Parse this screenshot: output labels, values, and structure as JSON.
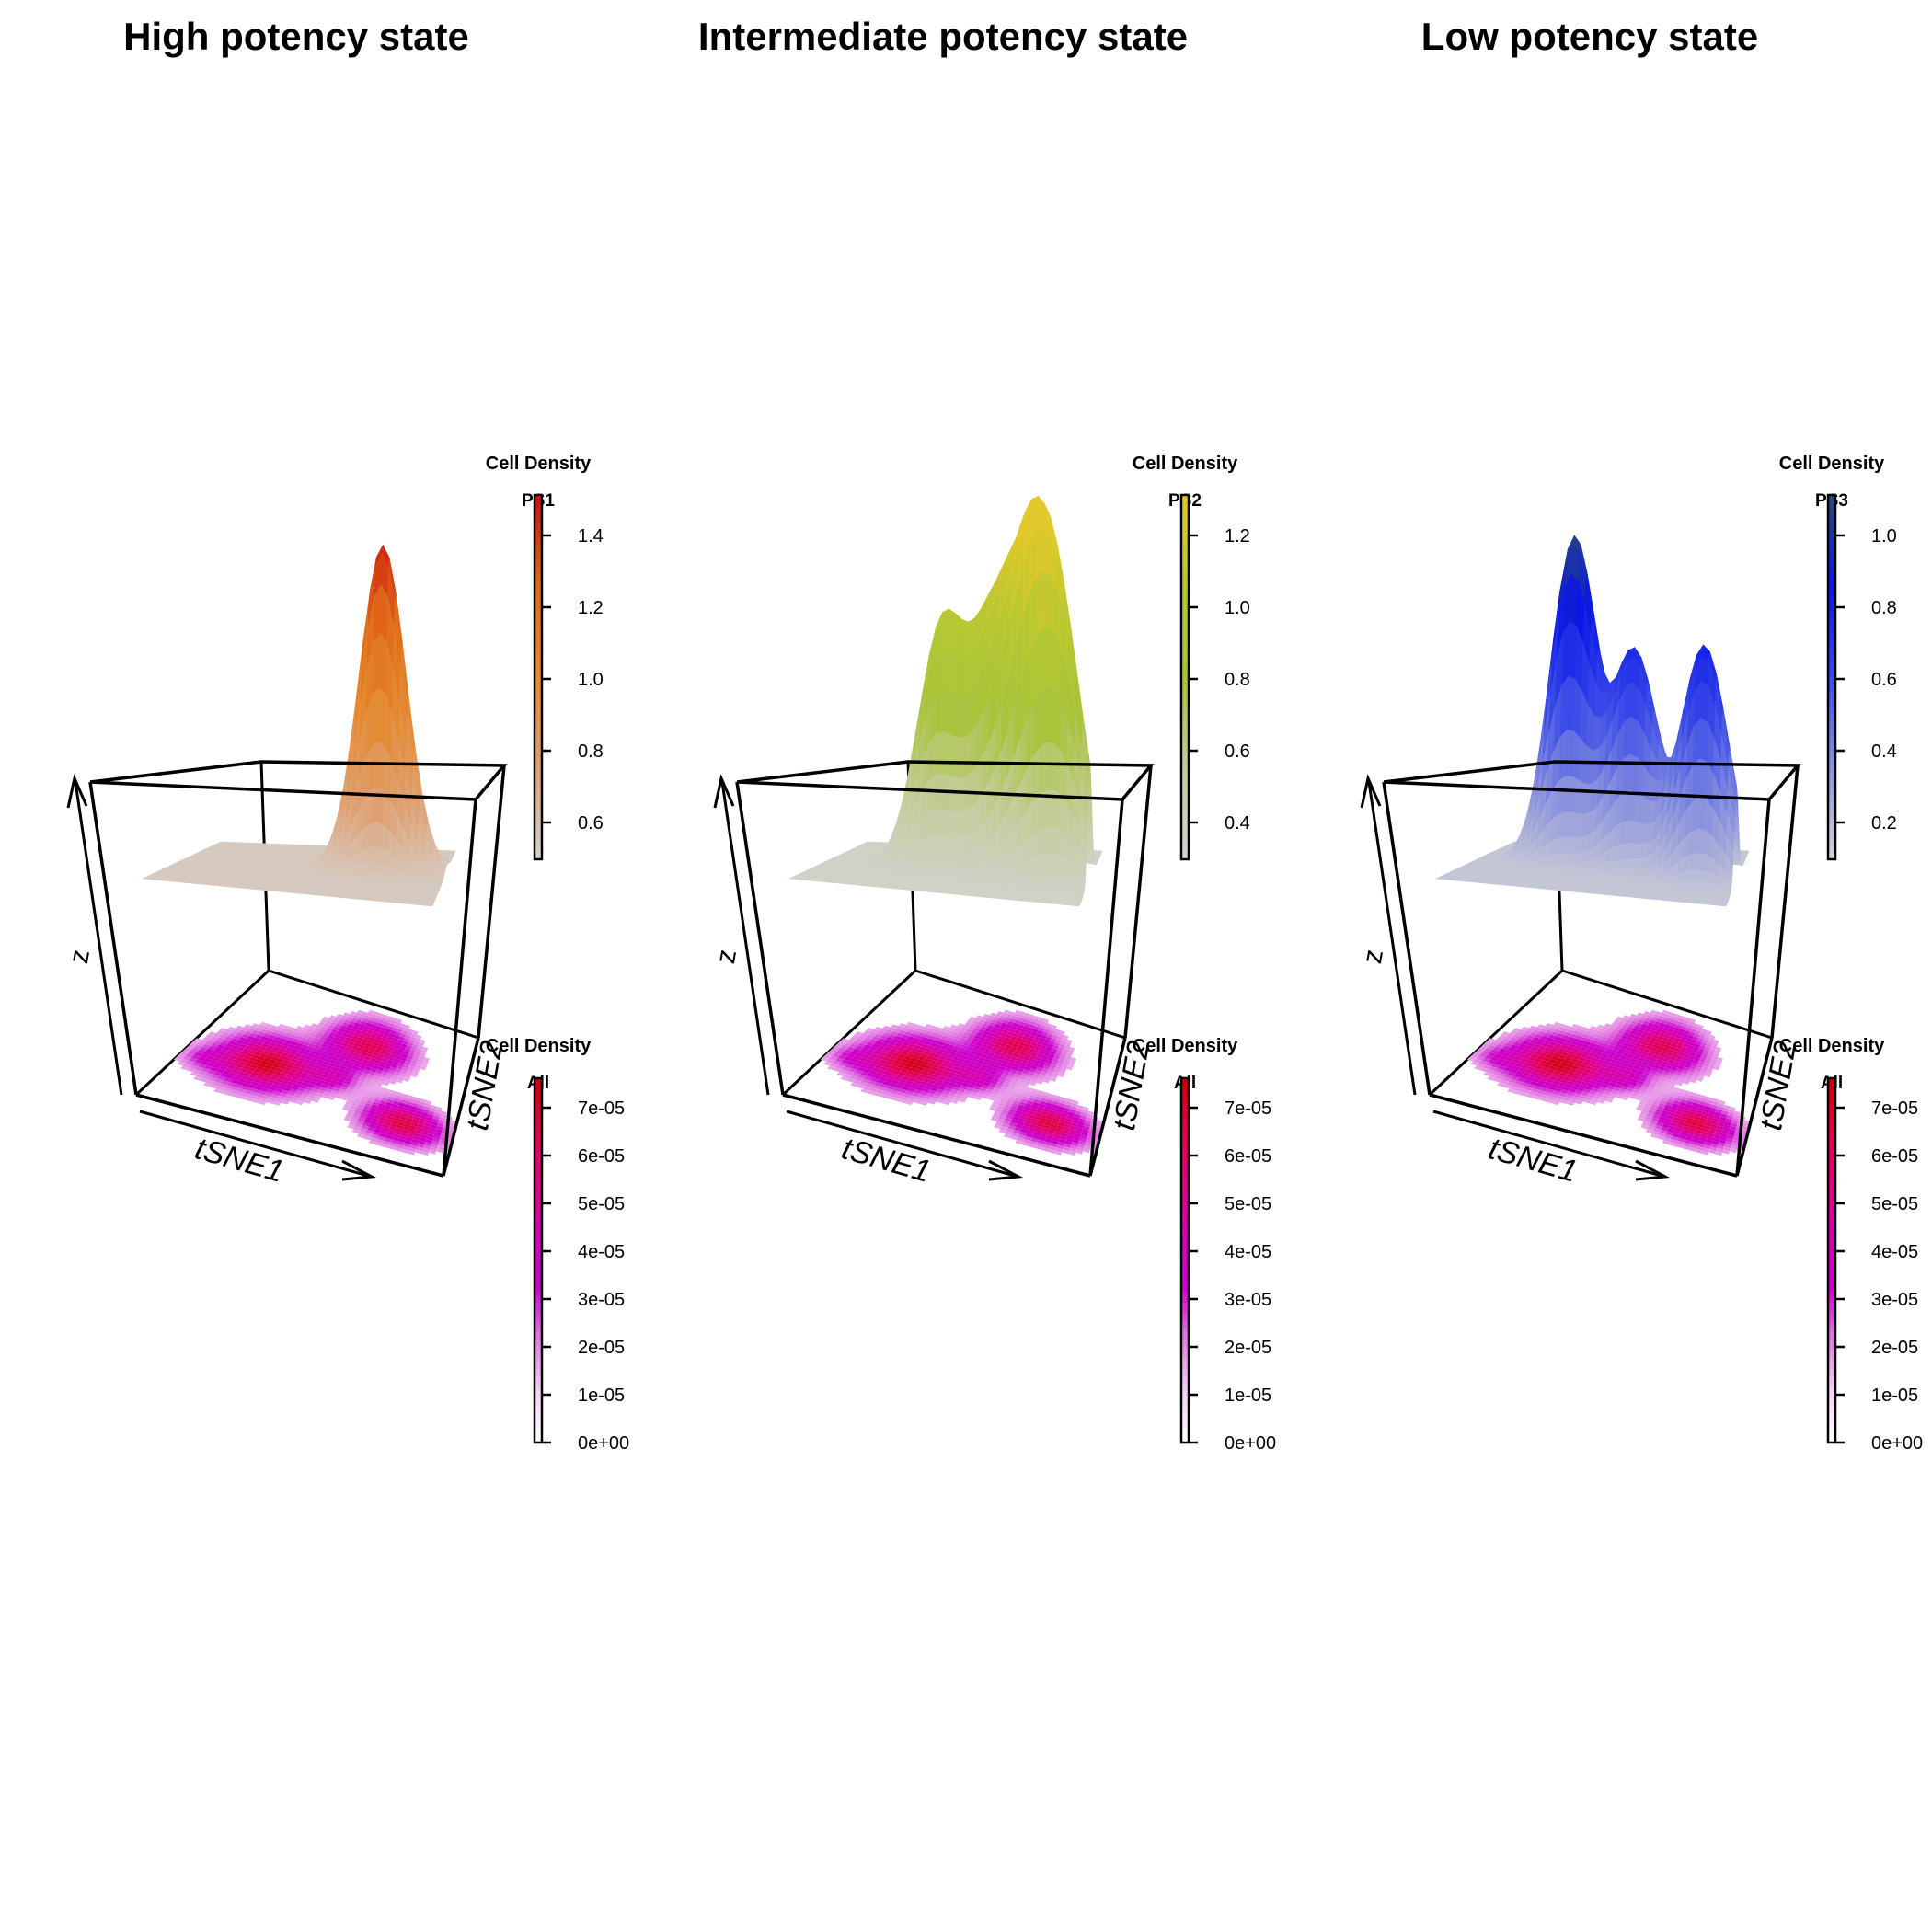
{
  "chart_data": [
    {
      "type": "surface3d",
      "title": "High potency state",
      "xlabel": "tSNE1",
      "ylabel": "tSNE2",
      "zlabel": "z",
      "surface_legend": {
        "title": "Cell Density",
        "subtitle": "PS1",
        "ticks": [
          "0.6",
          "0.8",
          "1.0",
          "1.2",
          "1.4"
        ],
        "range": [
          0.5,
          1.5
        ],
        "colors": [
          "#d3d3d3",
          "#e0a070",
          "#e58a30",
          "#e06a18",
          "#cc1010"
        ]
      },
      "surface_peaks": [
        {
          "x": 0.32,
          "y": 0.5,
          "height": 0.55
        },
        {
          "x": 0.75,
          "y": 0.62,
          "height": 1.45
        }
      ],
      "base_legend": {
        "title": "Cell Density",
        "subtitle": "All",
        "ticks": [
          "0e+00",
          "1e-05",
          "2e-05",
          "3e-05",
          "4e-05",
          "5e-05",
          "6e-05",
          "7e-05"
        ],
        "range": [
          0,
          7.5e-05
        ],
        "colors": [
          "#ffffff",
          "#f5d0f5",
          "#e07be0",
          "#cc00cc",
          "#d600b4",
          "#e00080",
          "#e2004a",
          "#cc0000"
        ]
      }
    },
    {
      "type": "surface3d",
      "title": "Intermediate potency state",
      "xlabel": "tSNE1",
      "ylabel": "tSNE2",
      "zlabel": "z",
      "surface_legend": {
        "title": "Cell Density",
        "subtitle": "PS2",
        "ticks": [
          "0.4",
          "0.6",
          "0.8",
          "1.0",
          "1.2"
        ],
        "range": [
          0.3,
          1.3
        ],
        "colors": [
          "#d3d3d3",
          "#c4cc9a",
          "#a8c43c",
          "#b8c832",
          "#e2c82a"
        ]
      },
      "surface_peaks": [
        {
          "x": 0.42,
          "y": 0.55,
          "height": 1.0
        },
        {
          "x": 0.62,
          "y": 0.55,
          "height": 0.95
        },
        {
          "x": 0.78,
          "y": 0.5,
          "height": 1.1
        },
        {
          "x": 0.9,
          "y": 0.45,
          "height": 0.9
        }
      ],
      "base_legend": {
        "title": "Cell Density",
        "subtitle": "All",
        "ticks": [
          "0e+00",
          "1e-05",
          "2e-05",
          "3e-05",
          "4e-05",
          "5e-05",
          "6e-05",
          "7e-05"
        ],
        "range": [
          0,
          7.5e-05
        ],
        "colors": [
          "#ffffff",
          "#f5d0f5",
          "#e07be0",
          "#cc00cc",
          "#d600b4",
          "#e00080",
          "#e2004a",
          "#cc0000"
        ]
      }
    },
    {
      "type": "surface3d",
      "title": "Low potency state",
      "xlabel": "tSNE1",
      "ylabel": "tSNE2",
      "zlabel": "z",
      "surface_legend": {
        "title": "Cell Density",
        "subtitle": "PS3",
        "ticks": [
          "0.2",
          "0.4",
          "0.6",
          "0.8",
          "1.0"
        ],
        "range": [
          0.1,
          1.1
        ],
        "colors": [
          "#d3d3d3",
          "#8b93dd",
          "#3a4ae8",
          "#0a16e6",
          "#2a4a70"
        ]
      },
      "surface_peaks": [
        {
          "x": 0.35,
          "y": 0.62,
          "height": 1.05
        },
        {
          "x": 0.6,
          "y": 0.55,
          "height": 0.75
        },
        {
          "x": 0.88,
          "y": 0.45,
          "height": 0.8
        }
      ],
      "base_legend": {
        "title": "Cell Density",
        "subtitle": "All",
        "ticks": [
          "0e+00",
          "1e-05",
          "2e-05",
          "3e-05",
          "4e-05",
          "5e-05",
          "6e-05",
          "7e-05"
        ],
        "range": [
          0,
          7.5e-05
        ],
        "colors": [
          "#ffffff",
          "#f5d0f5",
          "#e07be0",
          "#cc00cc",
          "#d600b4",
          "#e00080",
          "#e2004a",
          "#cc0000"
        ]
      }
    }
  ]
}
